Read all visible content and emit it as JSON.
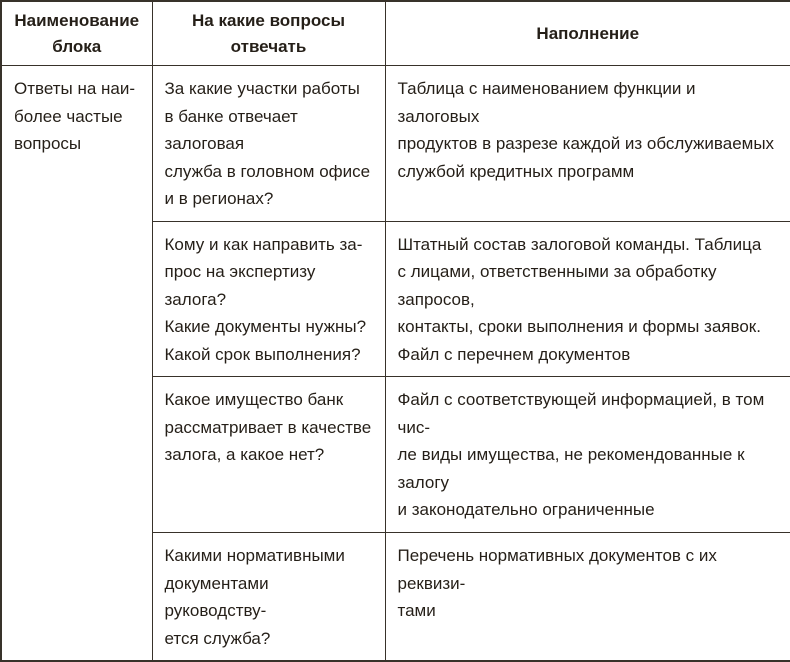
{
  "page": {
    "background": "#ffffff",
    "text_color": "#251f18",
    "border_color": "#38322a"
  },
  "table": {
    "headers": {
      "block_name": {
        "lines": [
          "Наименование",
          "блока"
        ]
      },
      "questions": {
        "lines": [
          "На какие вопросы",
          "отвечать"
        ]
      },
      "content": {
        "lines": [
          "Наполнение"
        ]
      }
    },
    "block": {
      "lines": [
        "Ответы на наи-",
        "более частые",
        "вопросы"
      ]
    },
    "rows": [
      {
        "question": {
          "lines": [
            "За какие участки работы",
            "в банке отвечает залоговая",
            "служба в головном офисе",
            "и в регионах?"
          ]
        },
        "content": {
          "lines": [
            "Таблица с наименованием функции и залоговых",
            "продуктов в разрезе каждой из обслуживаемых",
            "службой кредитных программ"
          ]
        }
      },
      {
        "question": {
          "lines": [
            "Кому и как направить за-",
            "прос на экспертизу залога?",
            "Какие документы нужны?",
            "Какой срок выполнения?"
          ]
        },
        "content": {
          "lines": [
            "Штатный состав залоговой команды. Таблица",
            "с лицами, ответственными за обработку запросов,",
            "контакты, сроки выполнения и формы заявок.",
            "Файл с перечнем документов"
          ]
        }
      },
      {
        "question": {
          "lines": [
            "Какое имущество банк",
            "рассматривает в качестве",
            "залога, а какое нет?"
          ]
        },
        "content": {
          "lines": [
            "Файл с соответствующей информацией, в том чис-",
            "ле виды имущества, не рекомендованные к залогу",
            "и законодательно ограниченные"
          ]
        }
      },
      {
        "question": {
          "lines": [
            "Какими нормативными",
            "документами руководству-",
            "ется служба?"
          ]
        },
        "content": {
          "lines": [
            "Перечень нормативных документов с их реквизи-",
            "тами"
          ]
        }
      }
    ]
  }
}
